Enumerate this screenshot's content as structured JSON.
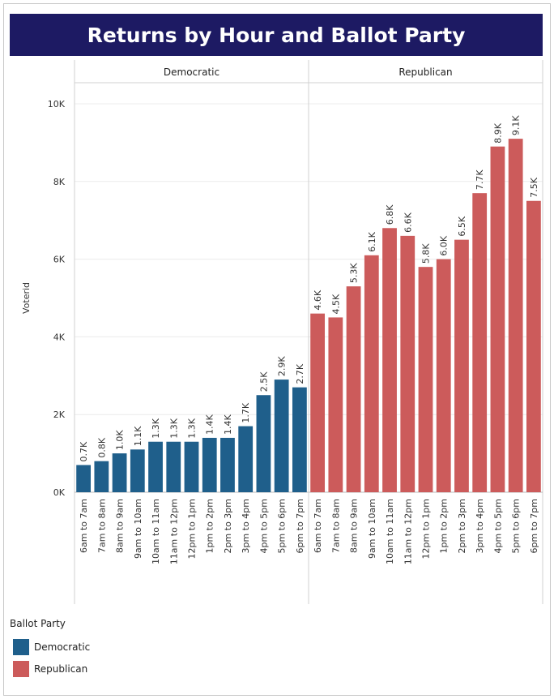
{
  "chart_data": {
    "type": "bar",
    "title": "Returns by Hour and Ballot Party",
    "ylabel": "Voterid",
    "xlabel": "",
    "ylim": [
      0,
      10000
    ],
    "yticks": [
      0,
      2000,
      4000,
      6000,
      8000,
      10000
    ],
    "ytick_labels": [
      "0K",
      "2K",
      "4K",
      "6K",
      "8K",
      "10K"
    ],
    "legend_title": "Ballot Party",
    "panels": [
      {
        "name": "Democratic",
        "color": "#1f5f8b",
        "categories": [
          "6am to 7am",
          "7am to 8am",
          "8am to 9am",
          "9am to 10am",
          "10am to 11am",
          "11am to 12pm",
          "12pm to 1pm",
          "1pm to 2pm",
          "2pm to 3pm",
          "3pm to 4pm",
          "4pm to 5pm",
          "5pm to 6pm",
          "6pm to 7pm"
        ],
        "values": [
          700,
          800,
          1000,
          1100,
          1300,
          1300,
          1300,
          1400,
          1400,
          1700,
          2500,
          2900,
          2700
        ],
        "labels": [
          "0.7K",
          "0.8K",
          "1.0K",
          "1.1K",
          "1.3K",
          "1.3K",
          "1.3K",
          "1.4K",
          "1.4K",
          "1.7K",
          "2.5K",
          "2.9K",
          "2.7K"
        ]
      },
      {
        "name": "Republican",
        "color": "#cc5b5b",
        "categories": [
          "6am to 7am",
          "7am to 8am",
          "8am to 9am",
          "9am to 10am",
          "10am to 11am",
          "11am to 12pm",
          "12pm to 1pm",
          "1pm to 2pm",
          "2pm to 3pm",
          "3pm to 4pm",
          "4pm to 5pm",
          "5pm to 6pm",
          "6pm to 7pm"
        ],
        "values": [
          4600,
          4500,
          5300,
          6100,
          6800,
          6600,
          5800,
          6000,
          6500,
          7700,
          8900,
          9100,
          7500
        ],
        "labels": [
          "4.6K",
          "4.5K",
          "5.3K",
          "6.1K",
          "6.8K",
          "6.6K",
          "5.8K",
          "6.0K",
          "6.5K",
          "7.7K",
          "8.9K",
          "9.1K",
          "7.5K"
        ]
      }
    ]
  }
}
